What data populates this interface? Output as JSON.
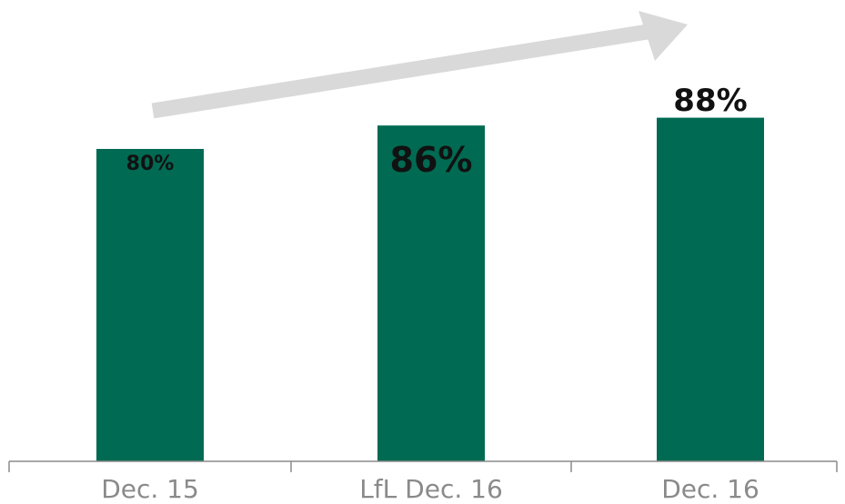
{
  "chart_data": {
    "type": "bar",
    "title": "",
    "xlabel": "",
    "ylabel": "",
    "categories": [
      "Dec. 15",
      "LfL Dec. 16",
      "Dec. 16"
    ],
    "series": [
      {
        "values": [
          80,
          86,
          88
        ]
      }
    ],
    "labels": [
      "80%",
      "86%",
      "88%"
    ],
    "ylim": [
      0,
      100
    ],
    "grid": false,
    "legend": "none",
    "trend_arrow": true,
    "colors": {
      "bar": "#006a52",
      "dashed_outline": "#006a52",
      "arrow": "#d9d9d9",
      "axis": "#8a8a8a",
      "tick_text": "#8a8a8a",
      "value_text": "#111111"
    }
  }
}
